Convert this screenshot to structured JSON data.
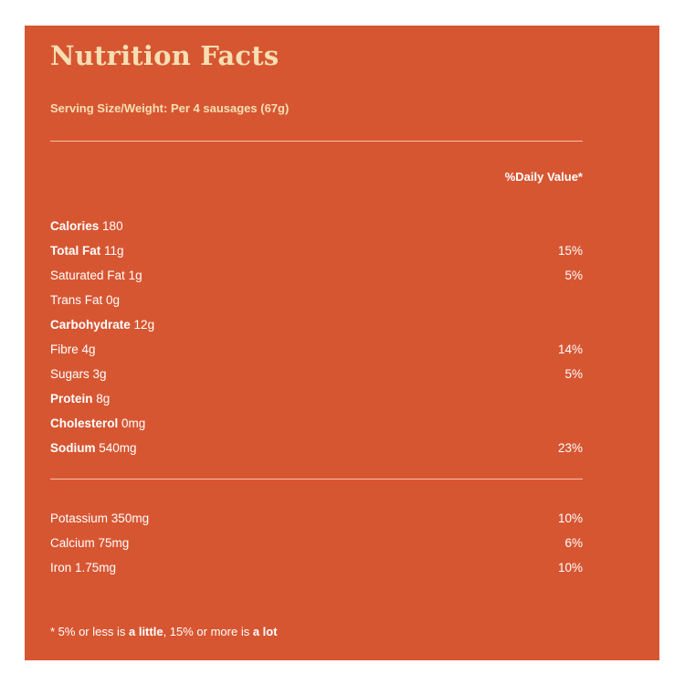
{
  "title": "Nutrition Facts",
  "serving": "Serving Size/Weight: Per 4 sausages (67g)",
  "dv_header": "%Daily Value*",
  "nutrients": [
    {
      "name": "Calories",
      "amount": "180",
      "dv": "",
      "bold": true
    },
    {
      "name": "Total Fat",
      "amount": "11g",
      "dv": "15%",
      "bold": true
    },
    {
      "name": "Saturated Fat",
      "amount": "1g",
      "dv": "5%",
      "bold": false
    },
    {
      "name": "Trans Fat",
      "amount": "0g",
      "dv": "",
      "bold": false
    },
    {
      "name": "Carbohydrate",
      "amount": "12g",
      "dv": "",
      "bold": true
    },
    {
      "name": "Fibre",
      "amount": "4g",
      "dv": "14%",
      "bold": false
    },
    {
      "name": "Sugars",
      "amount": "3g",
      "dv": "5%",
      "bold": false
    },
    {
      "name": "Protein",
      "amount": "8g",
      "dv": "",
      "bold": true
    },
    {
      "name": "Cholesterol",
      "amount": "0mg",
      "dv": "",
      "bold": true
    },
    {
      "name": "Sodium",
      "amount": "540mg",
      "dv": "23%",
      "bold": true
    }
  ],
  "minerals": [
    {
      "name": "Potassium",
      "amount": "350mg",
      "dv": "10%"
    },
    {
      "name": "Calcium",
      "amount": "75mg",
      "dv": "6%"
    },
    {
      "name": "Iron",
      "amount": "1.75mg",
      "dv": "10%"
    }
  ],
  "footnote": {
    "prefix": "* 5% or less is ",
    "little": "a little",
    "middle": ", 15% or more is ",
    "lot": "a lot"
  },
  "colors": {
    "background": "#d75632",
    "heading": "#f6dfb3",
    "text": "#ffffff"
  }
}
